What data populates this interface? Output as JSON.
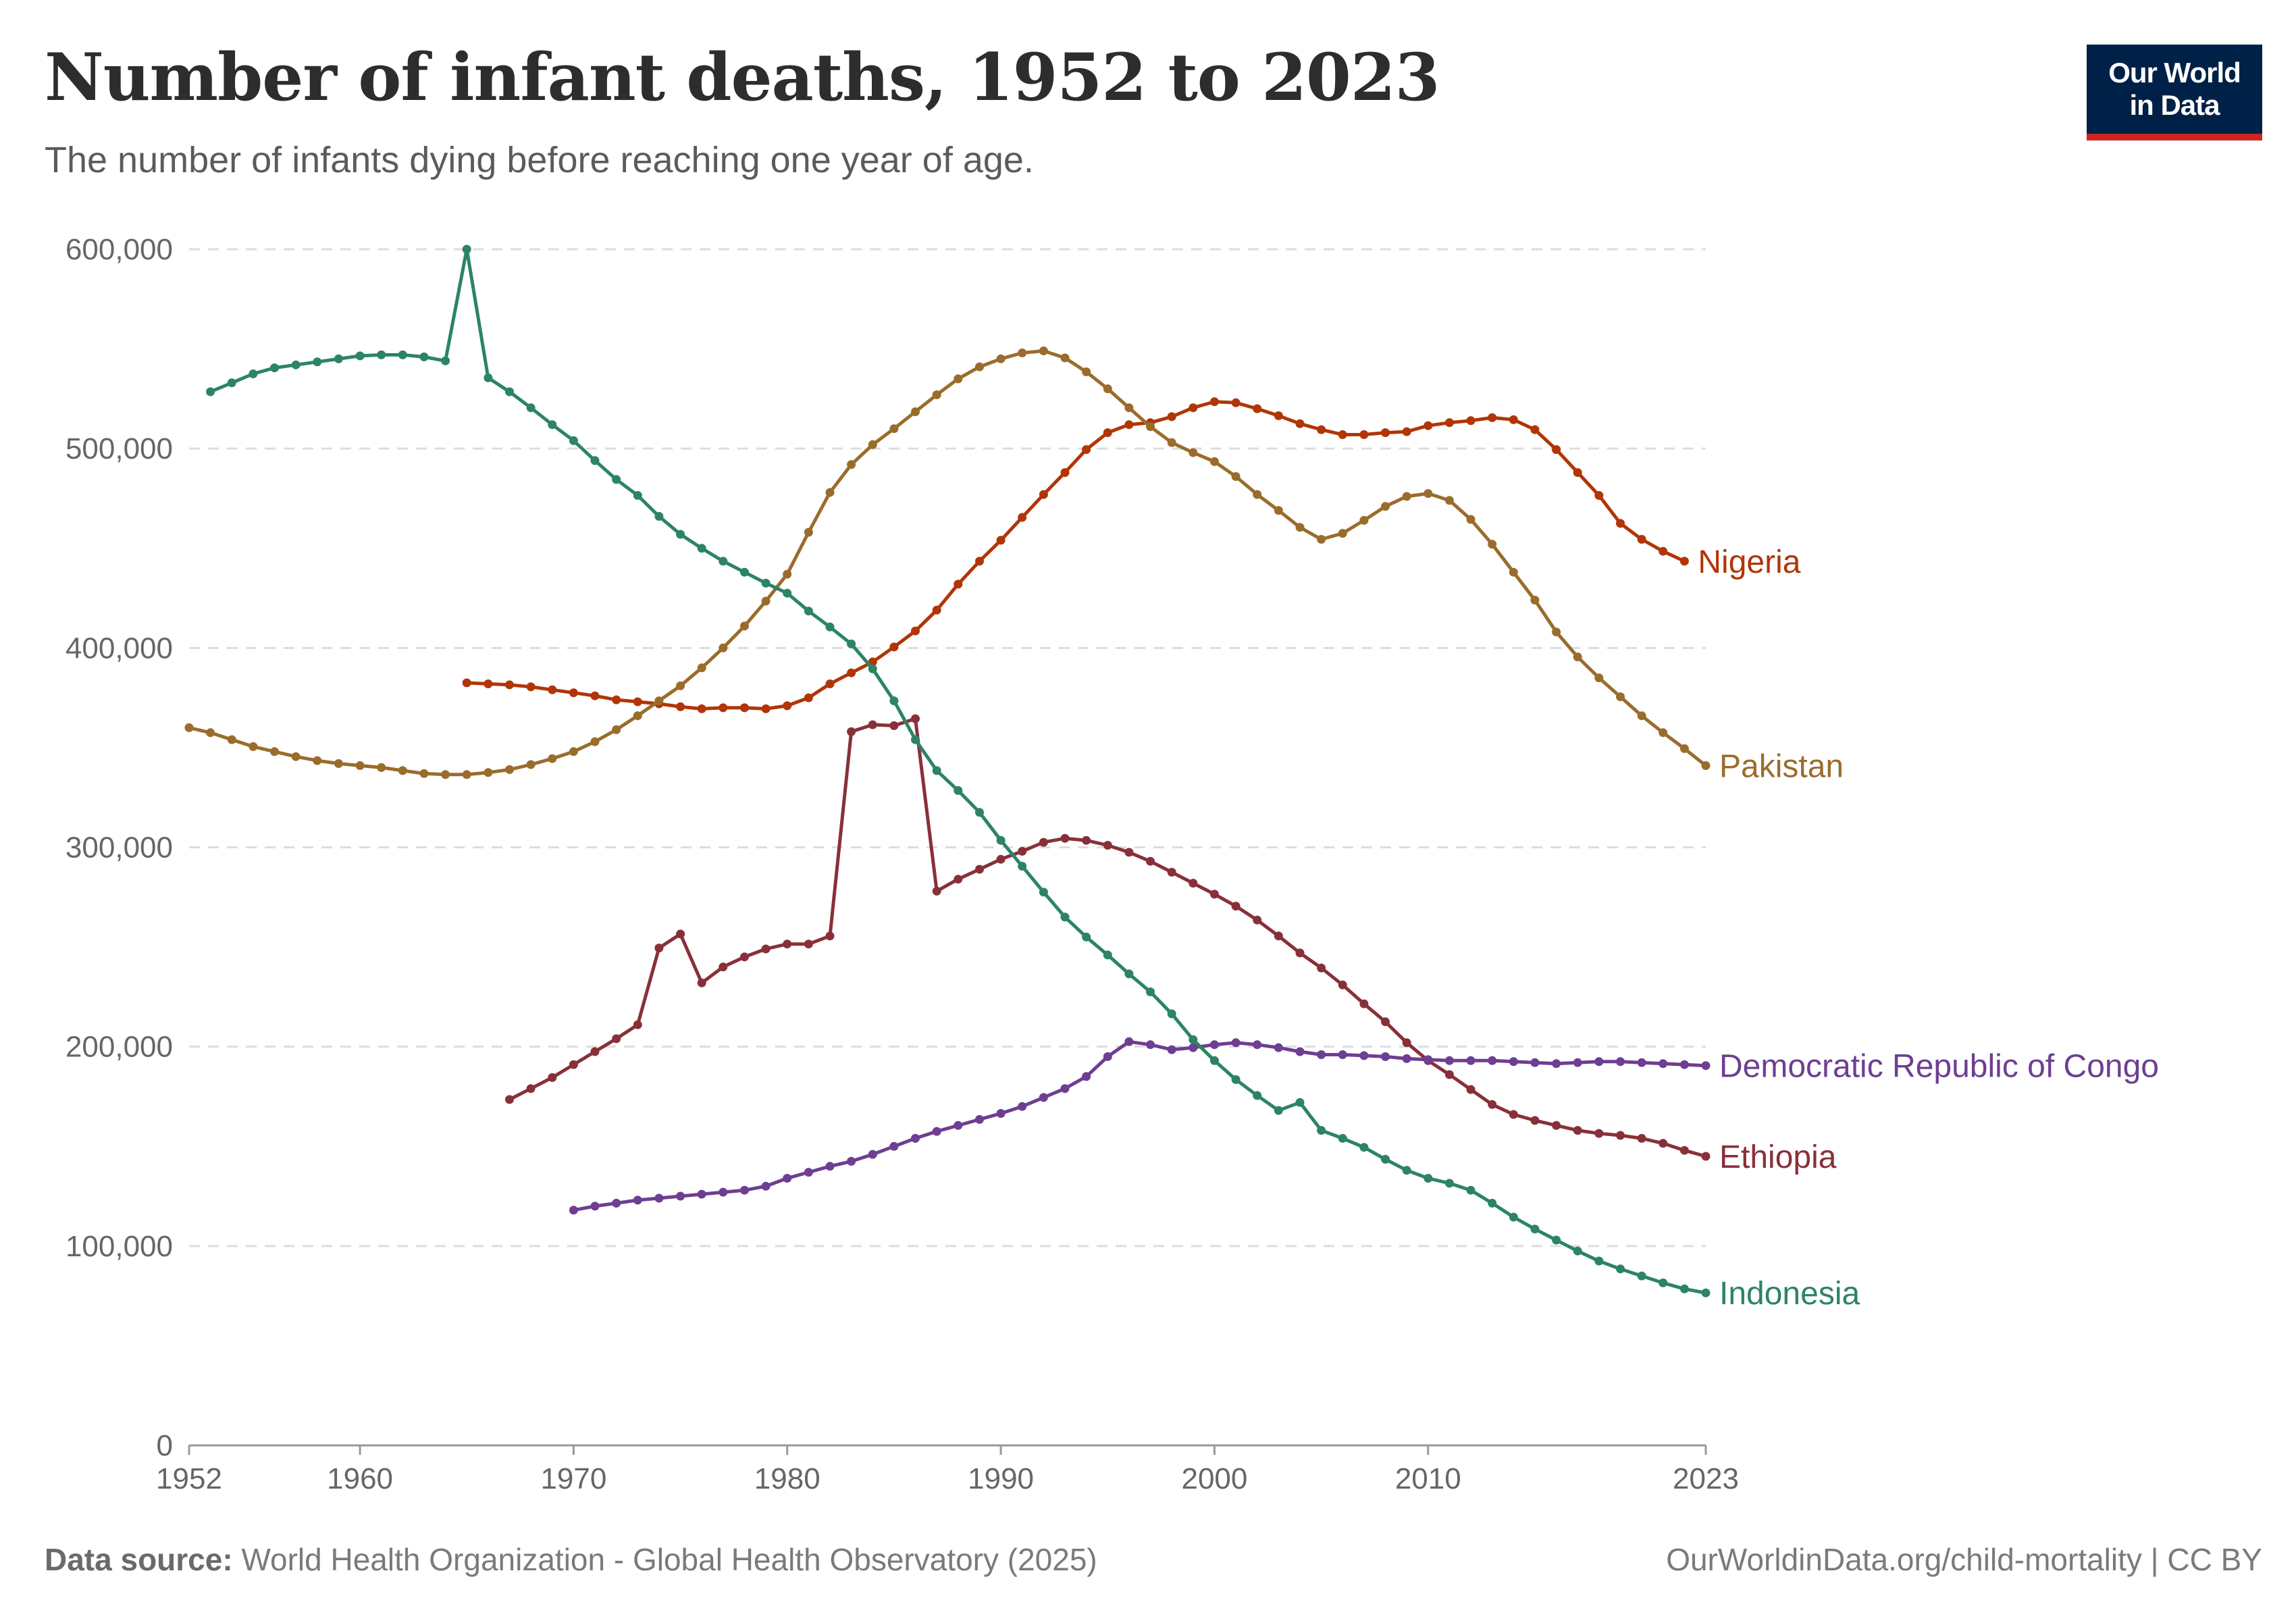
{
  "header": {
    "title": "Number of infant deaths, 1952 to 2023",
    "subtitle": "The number of infants dying before reaching one year of age."
  },
  "logo": {
    "line1": "Our World",
    "line2": "in Data"
  },
  "footer": {
    "source_label": "Data source:",
    "source_text": "World Health Organization - Global Health Observatory (2025)",
    "right_text": "OurWorldinData.org/child-mortality | CC BY"
  },
  "colors": {
    "grid": "#dddddd",
    "axis": "#999999"
  },
  "chart_data": {
    "type": "line",
    "title": "Number of infant deaths, 1952 to 2023",
    "subtitle": "The number of infants dying before reaching one year of age.",
    "xlim": [
      1952,
      2023
    ],
    "ylim": [
      0,
      600000
    ],
    "x_ticks": [
      1952,
      1960,
      1970,
      1980,
      1990,
      2000,
      2010,
      2023
    ],
    "y_ticks": [
      0,
      100000,
      200000,
      300000,
      400000,
      500000,
      600000
    ],
    "y_tick_labels": [
      "0",
      "100,000",
      "200,000",
      "300,000",
      "400,000",
      "500,000",
      "600,000"
    ],
    "grid": "horizontal dashed",
    "legend": "labels at line ends (right)",
    "series": [
      {
        "name": "Nigeria",
        "color": "#b13507",
        "start": 1965,
        "values": [
          382500,
          382000,
          381500,
          380500,
          379000,
          377500,
          376000,
          374000,
          373000,
          372000,
          370500,
          369500,
          370000,
          370000,
          369500,
          371000,
          375000,
          382000,
          387500,
          393000,
          400500,
          408500,
          419000,
          432000,
          443500,
          454000,
          465500,
          477000,
          488000,
          499500,
          508000,
          512000,
          513000,
          516000,
          520500,
          523500,
          523000,
          520000,
          516500,
          512500,
          509500,
          507000,
          507000,
          508000,
          508500,
          511500,
          513000,
          514000,
          515500,
          514500,
          509500,
          499500,
          488000,
          476500,
          462500,
          454500,
          448500,
          443500
        ]
      },
      {
        "name": "Pakistan",
        "color": "#9a6c2c",
        "start": 1952,
        "values": [
          360000,
          357500,
          354000,
          350500,
          348000,
          345500,
          343500,
          342000,
          341000,
          340000,
          338500,
          337000,
          336500,
          336500,
          337500,
          339000,
          341500,
          344500,
          348000,
          353000,
          359000,
          366000,
          373500,
          381000,
          390000,
          400000,
          411000,
          423500,
          437000,
          458000,
          478000,
          492000,
          502000,
          510000,
          518500,
          527000,
          535000,
          541000,
          545000,
          548000,
          549000,
          545500,
          538500,
          530000,
          520500,
          511000,
          503000,
          498000,
          493500,
          486000,
          477000,
          469000,
          460500,
          454500,
          457500,
          464000,
          471000,
          476000,
          477500,
          474000,
          464500,
          452000,
          438000,
          424000,
          408000,
          395500,
          385000,
          375500,
          366000,
          357500,
          349500,
          341000
        ]
      },
      {
        "name": "Ethiopia",
        "color": "#883039",
        "start": 1967,
        "values": [
          173500,
          179000,
          184500,
          191000,
          197500,
          204000,
          211000,
          249500,
          256500,
          232000,
          240000,
          245000,
          249000,
          251500,
          251500,
          255500,
          358000,
          361500,
          361000,
          364500,
          278000,
          284000,
          289000,
          294000,
          298000,
          302500,
          304500,
          303500,
          301000,
          297500,
          293000,
          287500,
          282000,
          276500,
          270500,
          263500,
          255500,
          247000,
          239500,
          231000,
          221500,
          212500,
          202000,
          193000,
          186000,
          178500,
          171000,
          166000,
          163000,
          160500,
          158000,
          156500,
          155500,
          154000,
          151500,
          148000,
          145000
        ]
      },
      {
        "name": "Democratic Republic of Congo",
        "color": "#6d3e91",
        "start": 1970,
        "values": [
          118000,
          120000,
          121500,
          123000,
          124000,
          125000,
          126000,
          127000,
          128000,
          130000,
          134000,
          137000,
          140000,
          142500,
          146000,
          150000,
          154000,
          157500,
          160500,
          163500,
          166500,
          170000,
          174500,
          179000,
          185000,
          195000,
          202500,
          201000,
          198500,
          199500,
          201000,
          202000,
          201000,
          199500,
          197500,
          196000,
          196000,
          195500,
          195000,
          194000,
          193500,
          193000,
          193000,
          193000,
          192500,
          192000,
          191500,
          192000,
          192500,
          192500,
          192000,
          191500,
          191000,
          190500
        ]
      },
      {
        "name": "Indonesia",
        "color": "#2c8465",
        "start": 1953,
        "values": [
          528500,
          533000,
          537500,
          540500,
          542000,
          543500,
          545000,
          546500,
          547000,
          547000,
          546000,
          544000,
          600000,
          535500,
          528500,
          520500,
          512000,
          504000,
          494000,
          484500,
          476500,
          466000,
          457000,
          450000,
          443500,
          438000,
          432500,
          427500,
          418500,
          410500,
          402000,
          389500,
          373500,
          354000,
          338500,
          328500,
          317500,
          303500,
          290500,
          277500,
          265000,
          255000,
          246000,
          236500,
          227500,
          216500,
          203500,
          193000,
          183500,
          175500,
          168000,
          172000,
          158000,
          154000,
          149500,
          143500,
          138000,
          134000,
          131500,
          128000,
          121500,
          114500,
          108500,
          103000,
          97500,
          92500,
          88500,
          85000,
          81500,
          78500,
          76500
        ]
      }
    ]
  }
}
